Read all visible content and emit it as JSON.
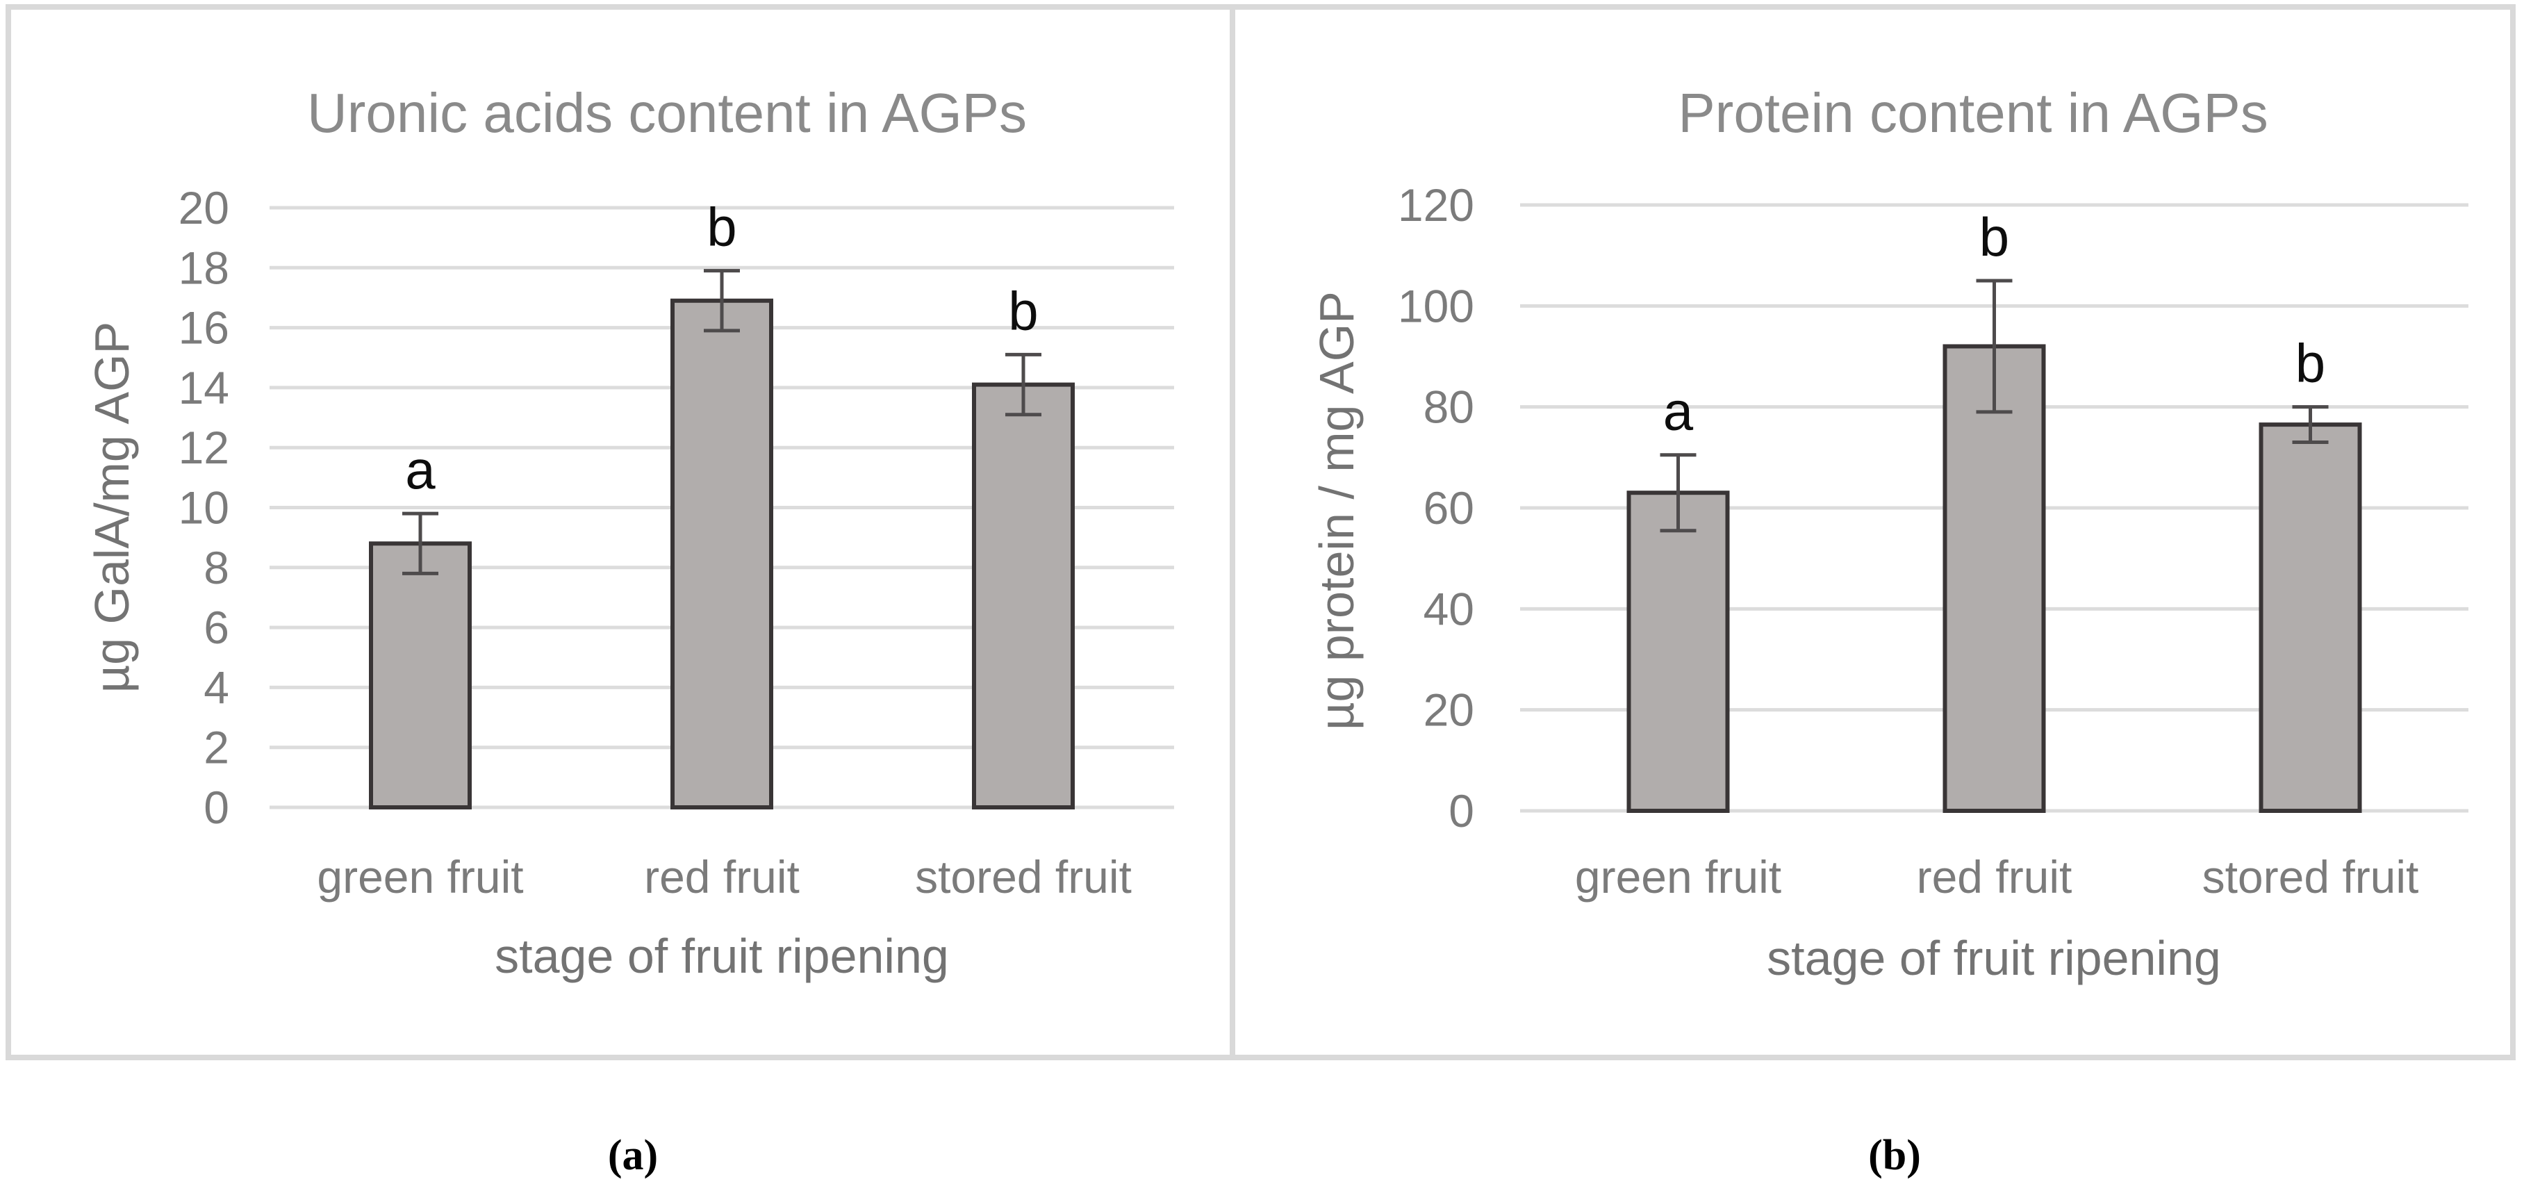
{
  "captions": {
    "a": "(a)",
    "b": "(b)"
  },
  "style": {
    "background": "#ffffff",
    "panel_border": "#d9d9d9",
    "gridline_color": "#dcdcdc",
    "bar_fill": "#b1adac",
    "bar_border": "#393536",
    "error_color": "#4e4b4c",
    "title_color": "#8a8a8a",
    "tick_color": "#7b7b7b",
    "label_color": "#737373",
    "letter_color": "#0d0d0d"
  },
  "chart_data": [
    {
      "id": "a",
      "type": "bar",
      "title": "Uronic acids content in AGPs",
      "xlabel": "stage of fruit ripening",
      "ylabel": "µg GalA/mg AGP",
      "categories": [
        "green fruit",
        "red fruit",
        "stored fruit"
      ],
      "values": [
        8.8,
        16.9,
        14.1
      ],
      "error_bars": [
        [
          7.8,
          9.8
        ],
        [
          15.9,
          17.9
        ],
        [
          13.1,
          15.1
        ]
      ],
      "sig_letters": [
        "a",
        "b",
        "b"
      ],
      "ylim": [
        0,
        20
      ],
      "yticks": [
        0,
        2,
        4,
        6,
        8,
        10,
        12,
        14,
        16,
        18,
        20
      ],
      "grid": true,
      "legend": "none"
    },
    {
      "id": "b",
      "type": "bar",
      "title": "Protein content in AGPs",
      "xlabel": "stage of fruit ripening",
      "ylabel": "µg protein / mg AGP",
      "categories": [
        "green fruit",
        "red fruit",
        "stored fruit"
      ],
      "values": [
        63,
        92,
        76.5
      ],
      "error_bars": [
        [
          55.5,
          70.5
        ],
        [
          79,
          105
        ],
        [
          73,
          80
        ]
      ],
      "sig_letters": [
        "a",
        "b",
        "b"
      ],
      "ylim": [
        0,
        120
      ],
      "yticks": [
        0,
        20,
        40,
        60,
        80,
        100,
        120
      ],
      "grid": true,
      "legend": "none"
    }
  ]
}
